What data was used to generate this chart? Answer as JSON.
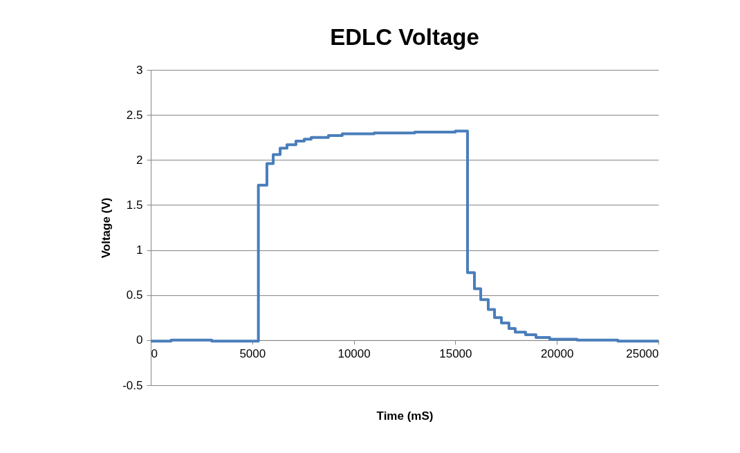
{
  "chart_data": {
    "type": "step",
    "title": "EDLC Voltage",
    "xlabel": "Time (mS)",
    "ylabel": "Voltage (V)",
    "x": [
      0,
      1000,
      2000,
      3000,
      4000,
      5300,
      5720,
      6030,
      6370,
      6710,
      7150,
      7560,
      7900,
      8750,
      9430,
      11000,
      13000,
      15000,
      15600,
      15940,
      16250,
      16620,
      16930,
      17270,
      17640,
      17950,
      18460,
      18970,
      19650,
      21000,
      23000,
      25000
    ],
    "series": [
      {
        "color": "#4a7ebb",
        "values": [
          -0.01,
          0,
          0,
          -0.01,
          -0.01,
          1.72,
          1.96,
          2.06,
          2.13,
          2.17,
          2.21,
          2.23,
          2.25,
          2.27,
          2.29,
          2.3,
          2.31,
          2.32,
          0.75,
          0.57,
          0.45,
          0.34,
          0.25,
          0.19,
          0.13,
          0.09,
          0.06,
          0.03,
          0.01,
          0,
          -0.01,
          -0.01
        ]
      }
    ],
    "xlim": [
      0,
      25000
    ],
    "xticks": [
      0,
      5000,
      10000,
      15000,
      20000,
      25000
    ],
    "ylim": [
      -0.5,
      3
    ],
    "yticks": [
      -0.5,
      0,
      0.5,
      1,
      1.5,
      2,
      2.5,
      3
    ],
    "grid": "y",
    "line_style": "solid",
    "marker": "none"
  }
}
